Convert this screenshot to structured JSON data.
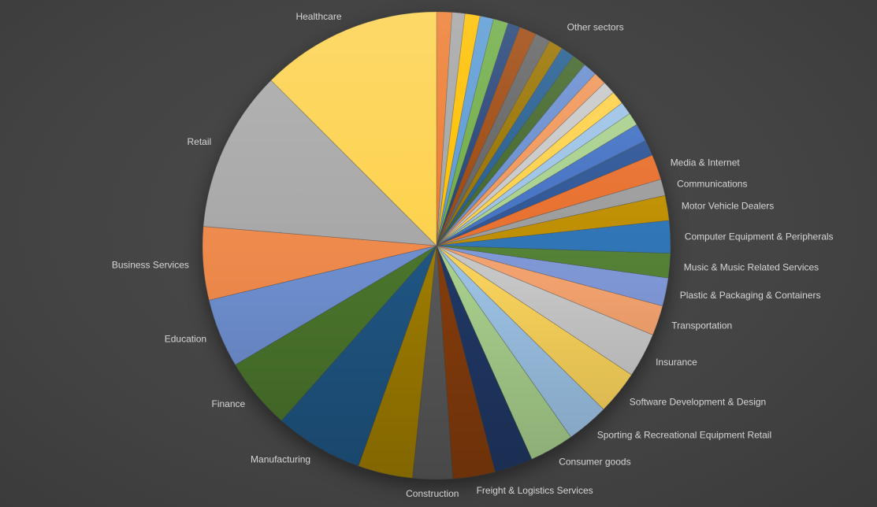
{
  "canvas": {
    "background_center_color": "#4b4b4b",
    "background_edge_color": "#383838",
    "label_color": "#D6D6D6"
  },
  "chart_data": {
    "type": "pie",
    "title": "",
    "legend_position": "none",
    "direction": "clockwise",
    "start_angle_deg": 0,
    "data_labels": "category-name-outside",
    "cluster_label": {
      "text": "Other sectors",
      "mid_angle_deg": 36
    },
    "slices": [
      {
        "label": "",
        "percent": 1.06,
        "color": "#ED7D31"
      },
      {
        "label": "",
        "percent": 0.89,
        "color": "#A5A5A5"
      },
      {
        "label": "",
        "percent": 1.03,
        "color": "#FFC000"
      },
      {
        "label": "",
        "percent": 0.94,
        "color": "#5B9BD5"
      },
      {
        "label": "",
        "percent": 1.03,
        "color": "#70AD47"
      },
      {
        "label": "",
        "percent": 0.86,
        "color": "#264478"
      },
      {
        "label": "",
        "percent": 1.17,
        "color": "#9E480E"
      },
      {
        "label": "",
        "percent": 1.06,
        "color": "#636363"
      },
      {
        "label": "",
        "percent": 0.97,
        "color": "#997300"
      },
      {
        "label": "",
        "percent": 0.94,
        "color": "#255E91"
      },
      {
        "label": "",
        "percent": 0.97,
        "color": "#43682B"
      },
      {
        "label": "",
        "percent": 0.94,
        "color": "#698ED0"
      },
      {
        "label": "",
        "percent": 0.89,
        "color": "#F1975A"
      },
      {
        "label": "",
        "percent": 0.89,
        "color": "#C9C9C9"
      },
      {
        "label": "",
        "percent": 0.92,
        "color": "#FFD24B"
      },
      {
        "label": "",
        "percent": 0.89,
        "color": "#9DC3E6"
      },
      {
        "label": "",
        "percent": 0.89,
        "color": "#A9D18E"
      },
      {
        "label": "",
        "percent": 1.25,
        "color": "#4472C4"
      },
      {
        "label": "",
        "percent": 1.08,
        "color": "#2E5596"
      },
      {
        "label": "Media & Internet",
        "percent": 1.75,
        "color": "#E8702E"
      },
      {
        "label": "Communications",
        "percent": 1.14,
        "color": "#9D9D9D"
      },
      {
        "label": "Motor Vehicle Dealers",
        "percent": 1.72,
        "color": "#BF8F00"
      },
      {
        "label": "Computer Equipment & Peripherals",
        "percent": 2.25,
        "color": "#2E75B6"
      },
      {
        "label": "Music & Music Related Services",
        "percent": 1.69,
        "color": "#548235"
      },
      {
        "label": "Plastic & Packaging & Containers",
        "percent": 1.94,
        "color": "#8099D8"
      },
      {
        "label": "Transportation",
        "percent": 2.08,
        "color": "#F5A46F"
      },
      {
        "label": "Insurance",
        "percent": 3.08,
        "color": "#C9C9C9"
      },
      {
        "label": "Software Development & Design",
        "percent": 3.03,
        "color": "#FBD45C"
      },
      {
        "label": "Sporting & Recreational Equipment Retail",
        "percent": 2.92,
        "color": "#9DC3E6"
      },
      {
        "label": "Consumer goods",
        "percent": 3.06,
        "color": "#A9D18E"
      },
      {
        "label": "",
        "percent": 2.64,
        "color": "#203864"
      },
      {
        "label": "Freight & Logistics Services",
        "percent": 2.92,
        "color": "#843C0C"
      },
      {
        "label": "Construction",
        "percent": 2.75,
        "color": "#585858"
      },
      {
        "label": "",
        "percent": 3.78,
        "color": "#9E7C00"
      },
      {
        "label": "Manufacturing",
        "percent": 6.11,
        "color": "#1F5582"
      },
      {
        "label": "Finance",
        "percent": 4.95,
        "color": "#4A752C"
      },
      {
        "label": "Education",
        "percent": 4.77,
        "color": "#6E8FD0"
      },
      {
        "label": "Business Services",
        "percent": 5.06,
        "color": "#F08A4B"
      },
      {
        "label": "Retail",
        "percent": 11.19,
        "color": "#A8A8A8"
      },
      {
        "label": "Healthcare",
        "percent": 12.5,
        "color": "#FDD24E"
      }
    ]
  }
}
